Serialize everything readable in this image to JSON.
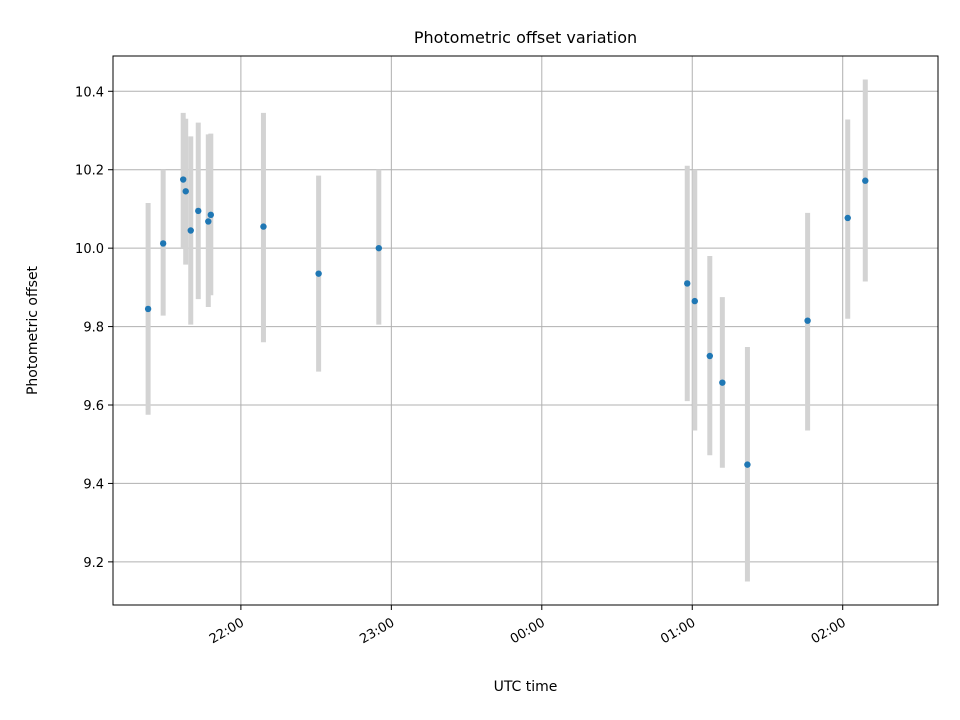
{
  "chart_data": {
    "type": "scatter",
    "title": "Photometric offset variation",
    "xlabel": "UTC time",
    "ylabel": "Photometric offset",
    "x_axis": {
      "kind": "time",
      "range": [
        "21:09",
        "02:38"
      ],
      "ticks": [
        "22:00",
        "23:00",
        "00:00",
        "01:00",
        "02:00"
      ]
    },
    "y_axis": {
      "range": [
        9.09,
        10.49
      ],
      "ticks": [
        9.2,
        9.4,
        9.6,
        9.8,
        10.0,
        10.2,
        10.4
      ],
      "tick_labels": [
        "9.2",
        "9.4",
        "9.6",
        "9.8",
        "10.0",
        "10.2",
        "10.4"
      ]
    },
    "grid": true,
    "colors": {
      "marker": "#1f77b4",
      "errorbar": "#d3d3d3",
      "grid": "#b0b0b0"
    },
    "series": [
      {
        "points": [
          {
            "x": "21:23",
            "y": 9.845,
            "ylow": 9.575,
            "yhigh": 10.115
          },
          {
            "x": "21:29",
            "y": 10.012,
            "ylow": 9.828,
            "yhigh": 10.2
          },
          {
            "x": "21:37",
            "y": 10.175,
            "ylow": 10.0,
            "yhigh": 10.345
          },
          {
            "x": "21:38",
            "y": 10.145,
            "ylow": 9.958,
            "yhigh": 10.33
          },
          {
            "x": "21:40",
            "y": 10.045,
            "ylow": 9.805,
            "yhigh": 10.285
          },
          {
            "x": "21:43",
            "y": 10.095,
            "ylow": 9.87,
            "yhigh": 10.32
          },
          {
            "x": "21:47",
            "y": 10.068,
            "ylow": 9.85,
            "yhigh": 10.29
          },
          {
            "x": "21:48",
            "y": 10.085,
            "ylow": 9.88,
            "yhigh": 10.292
          },
          {
            "x": "22:09",
            "y": 10.055,
            "ylow": 9.76,
            "yhigh": 10.345
          },
          {
            "x": "22:31",
            "y": 9.935,
            "ylow": 9.685,
            "yhigh": 10.185
          },
          {
            "x": "22:55",
            "y": 10.0,
            "ylow": 9.805,
            "yhigh": 10.2
          },
          {
            "x": "00:58",
            "y": 9.91,
            "ylow": 9.61,
            "yhigh": 10.21
          },
          {
            "x": "01:01",
            "y": 9.865,
            "ylow": 9.535,
            "yhigh": 10.2
          },
          {
            "x": "01:07",
            "y": 9.725,
            "ylow": 9.472,
            "yhigh": 9.98
          },
          {
            "x": "01:12",
            "y": 9.657,
            "ylow": 9.44,
            "yhigh": 9.875
          },
          {
            "x": "01:22",
            "y": 9.448,
            "ylow": 9.15,
            "yhigh": 9.748
          },
          {
            "x": "01:46",
            "y": 9.815,
            "ylow": 9.535,
            "yhigh": 10.09
          },
          {
            "x": "02:02",
            "y": 10.077,
            "ylow": 9.82,
            "yhigh": 10.328
          },
          {
            "x": "02:09",
            "y": 10.172,
            "ylow": 9.915,
            "yhigh": 10.43
          }
        ]
      }
    ]
  }
}
